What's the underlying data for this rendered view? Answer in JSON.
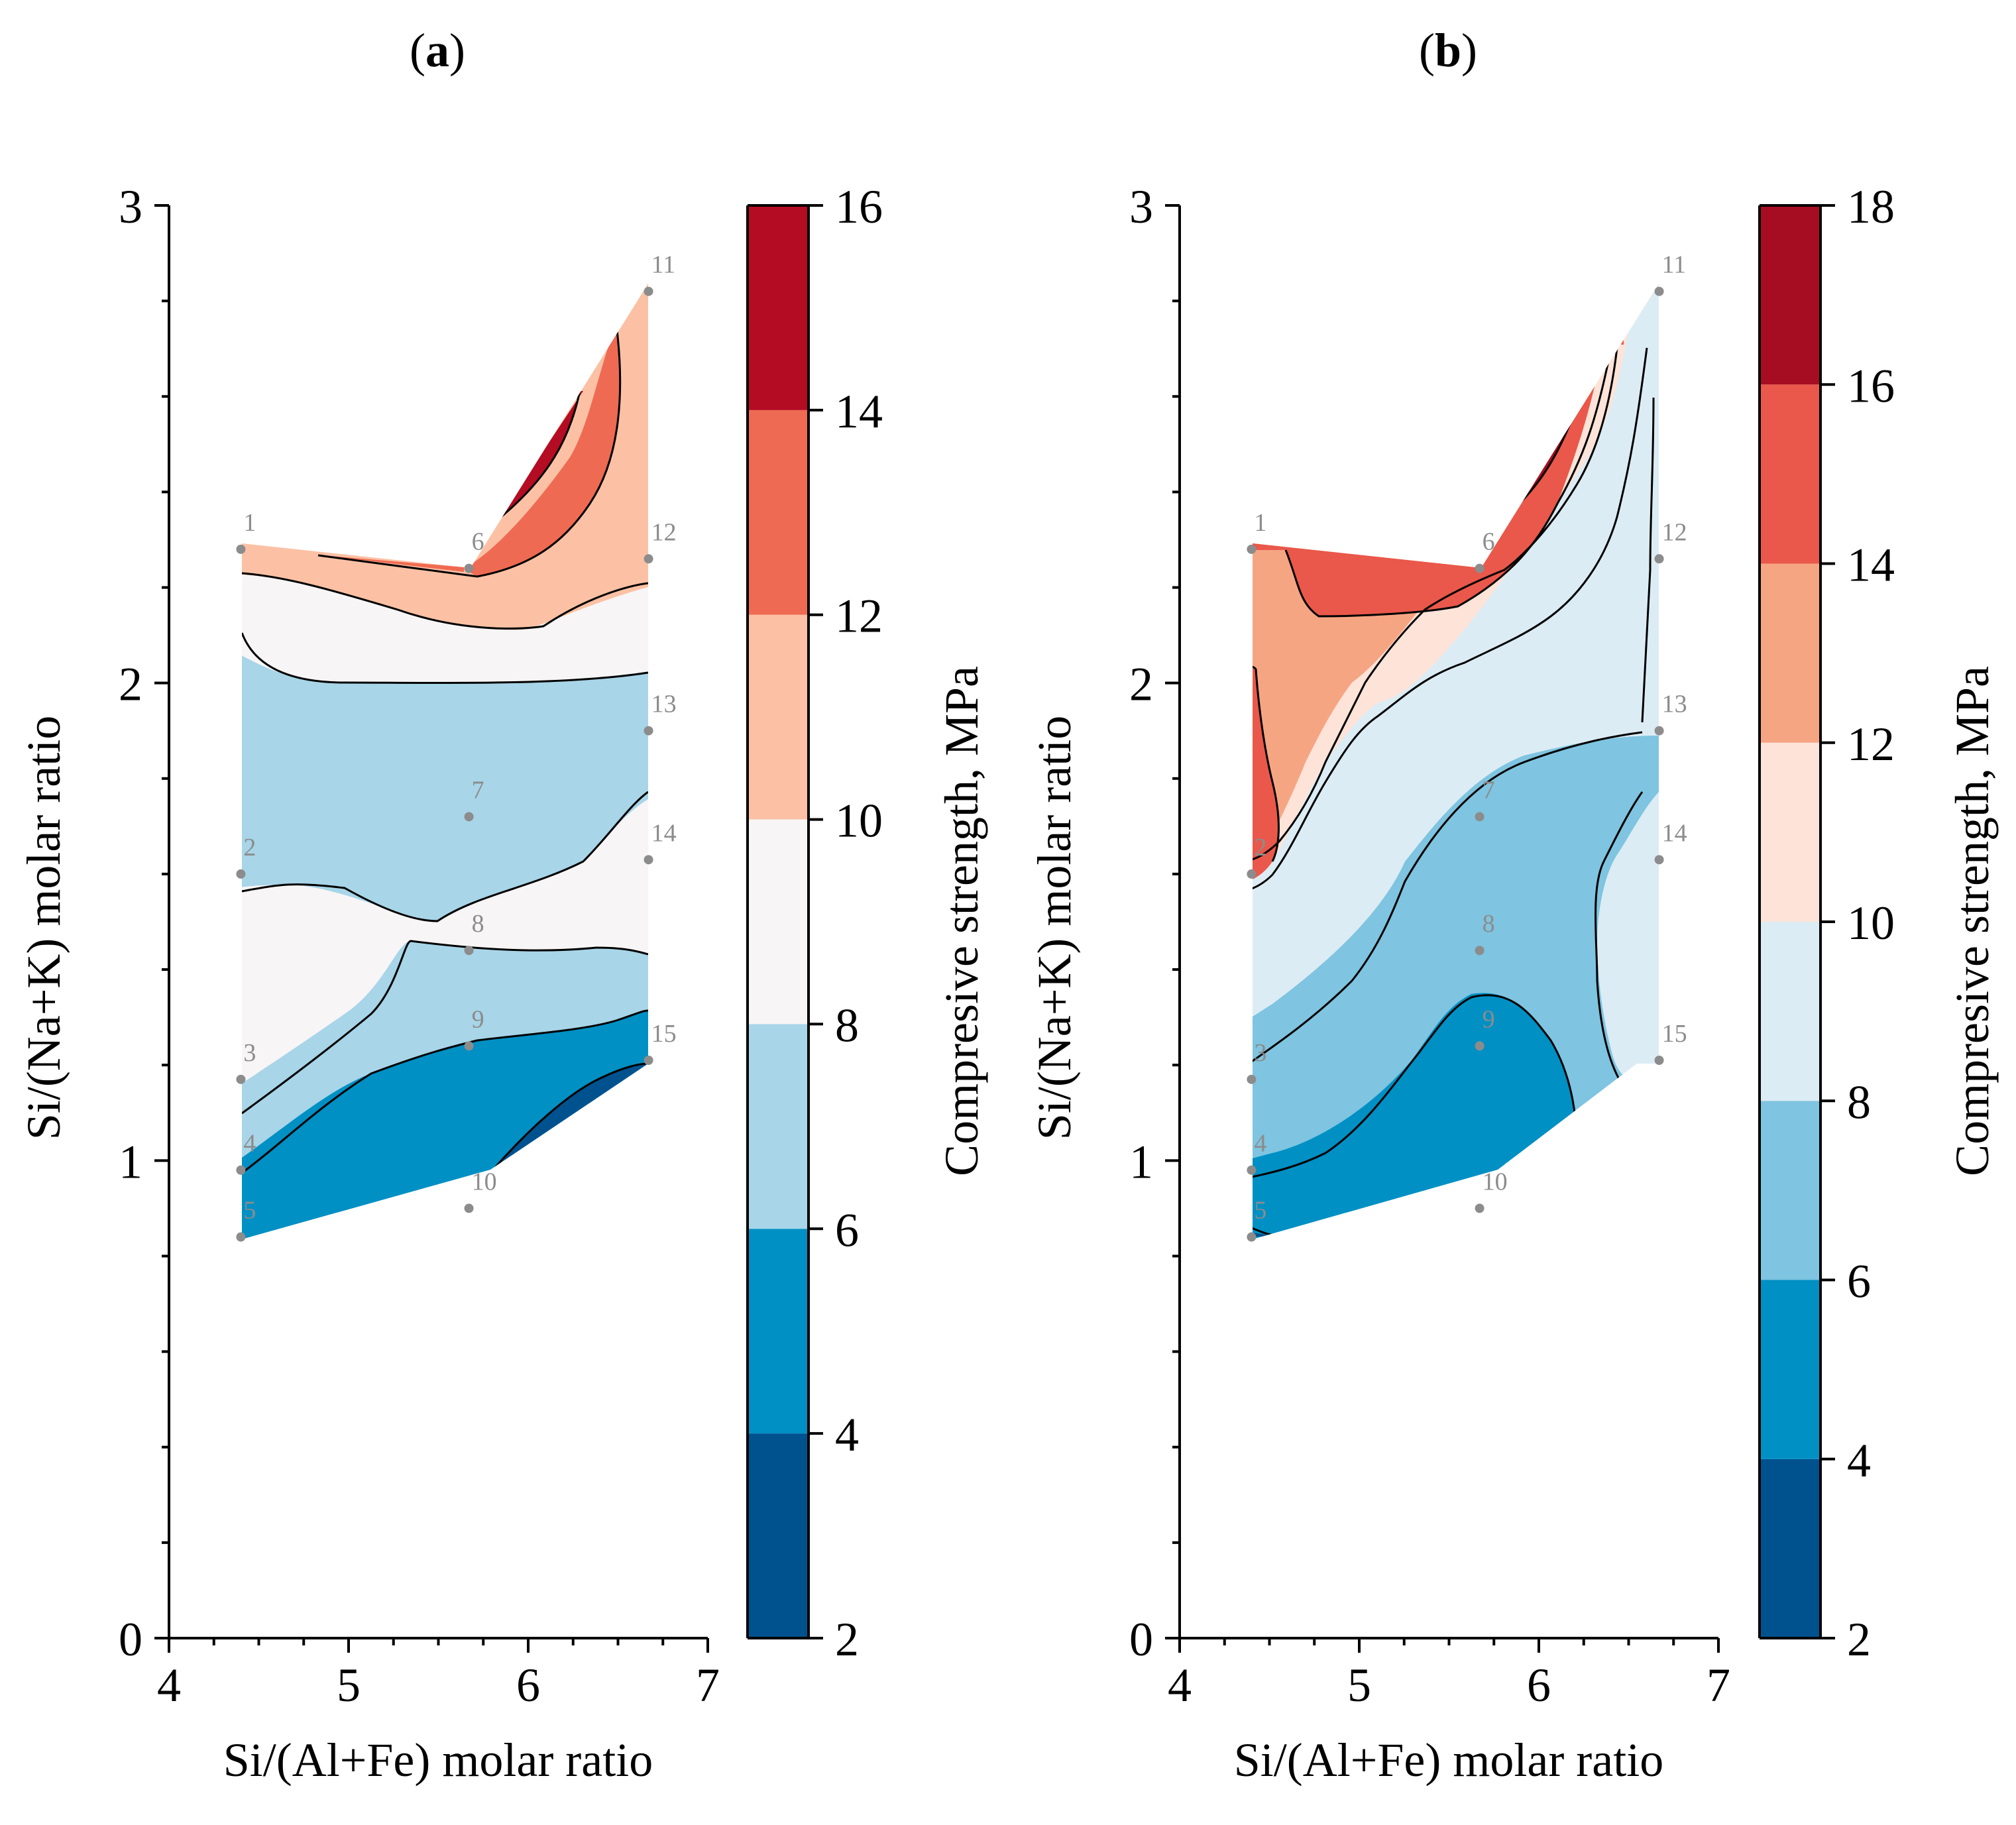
{
  "chart_data": [
    {
      "type": "contour",
      "panel_label": "a",
      "xlabel": "Si/(Al+Fe) molar ratio",
      "ylabel": "Si/(Na+K) molar ratio",
      "xlim": [
        4,
        7
      ],
      "ylim": [
        0,
        3
      ],
      "xticks": [
        4,
        5,
        6,
        7
      ],
      "yticks": [
        0,
        1,
        2,
        3
      ],
      "colorbar": {
        "label": "Compresive strength, MPa",
        "levels": [
          2,
          4,
          6,
          8,
          10,
          12,
          14,
          16
        ],
        "colors": [
          "#00528f",
          "#0090c4",
          "#a8d5e8",
          "#f7f5f6",
          "#fcc1a4",
          "#ef6a52",
          "#b40c23"
        ]
      },
      "design_points": [
        {
          "id": "1",
          "x": 4.4,
          "y": 2.28
        },
        {
          "id": "2",
          "x": 4.4,
          "y": 1.6
        },
        {
          "id": "3",
          "x": 4.4,
          "y": 1.17
        },
        {
          "id": "4",
          "x": 4.4,
          "y": 0.98
        },
        {
          "id": "5",
          "x": 4.4,
          "y": 0.84
        },
        {
          "id": "6",
          "x": 5.67,
          "y": 2.24
        },
        {
          "id": "7",
          "x": 5.67,
          "y": 1.72
        },
        {
          "id": "8",
          "x": 5.67,
          "y": 1.44
        },
        {
          "id": "9",
          "x": 5.67,
          "y": 1.24
        },
        {
          "id": "10",
          "x": 5.67,
          "y": 0.9
        },
        {
          "id": "11",
          "x": 6.67,
          "y": 2.82
        },
        {
          "id": "12",
          "x": 6.67,
          "y": 2.26
        },
        {
          "id": "13",
          "x": 6.67,
          "y": 1.9
        },
        {
          "id": "14",
          "x": 6.67,
          "y": 1.63
        },
        {
          "id": "15",
          "x": 6.67,
          "y": 1.21
        }
      ]
    },
    {
      "type": "contour",
      "panel_label": "b",
      "xlabel": "Si/(Al+Fe) molar ratio",
      "ylabel": "Si/(Na+K) molar ratio",
      "xlim": [
        4,
        7
      ],
      "ylim": [
        0,
        3
      ],
      "xticks": [
        4,
        5,
        6,
        7
      ],
      "yticks": [
        0,
        1,
        2,
        3
      ],
      "colorbar": {
        "label": "Compresive strength, MPa",
        "levels": [
          2,
          4,
          6,
          8,
          10,
          12,
          14,
          16,
          18
        ],
        "colors": [
          "#00528f",
          "#0090c4",
          "#7fc4e0",
          "#dcecf4",
          "#fde3d8",
          "#f6a583",
          "#e9584a",
          "#a70d22"
        ]
      },
      "design_points": [
        {
          "id": "1",
          "x": 4.4,
          "y": 2.28
        },
        {
          "id": "2",
          "x": 4.4,
          "y": 1.6
        },
        {
          "id": "3",
          "x": 4.4,
          "y": 1.17
        },
        {
          "id": "4",
          "x": 4.4,
          "y": 0.98
        },
        {
          "id": "5",
          "x": 4.4,
          "y": 0.84
        },
        {
          "id": "6",
          "x": 5.67,
          "y": 2.24
        },
        {
          "id": "7",
          "x": 5.67,
          "y": 1.72
        },
        {
          "id": "8",
          "x": 5.67,
          "y": 1.44
        },
        {
          "id": "9",
          "x": 5.67,
          "y": 1.24
        },
        {
          "id": "10",
          "x": 5.67,
          "y": 0.9
        },
        {
          "id": "11",
          "x": 6.67,
          "y": 2.82
        },
        {
          "id": "12",
          "x": 6.67,
          "y": 2.26
        },
        {
          "id": "13",
          "x": 6.67,
          "y": 1.9
        },
        {
          "id": "14",
          "x": 6.67,
          "y": 1.63
        },
        {
          "id": "15",
          "x": 6.67,
          "y": 1.21
        }
      ]
    }
  ]
}
